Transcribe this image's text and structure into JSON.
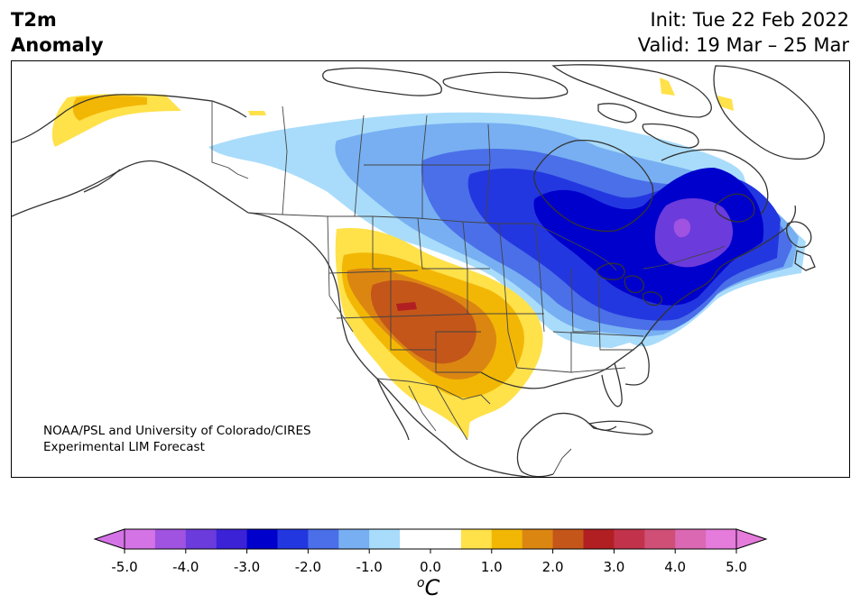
{
  "header": {
    "title_line1": "T2m",
    "title_line2": "Anomaly",
    "init_label": "Init: Tue 22 Feb 2022",
    "valid_label": "Valid: 19 Mar – 25 Mar"
  },
  "credit": {
    "line1": "NOAA/PSL and University of Colorado/CIRES",
    "line2": "Experimental LIM Forecast"
  },
  "colorbar": {
    "unit_main": "C",
    "unit_sup": "o",
    "labels": [
      "-5.0",
      "-4.0",
      "-3.0",
      "-2.0",
      "-1.0",
      "0.0",
      "1.0",
      "2.0",
      "3.0",
      "4.0",
      "5.0"
    ],
    "colors": [
      "#d473e6",
      "#a052e0",
      "#6b3bdc",
      "#3b22d6",
      "#0000cc",
      "#2337e0",
      "#4a6fe8",
      "#77aff2",
      "#a9dcfb",
      "#ffffff",
      "#ffffff",
      "#ffe14a",
      "#f2b705",
      "#dc8612",
      "#c4561a",
      "#b21f22",
      "#c2334b",
      "#cf4f76",
      "#db68b3",
      "#e57bdb"
    ],
    "extend_low_color": "#d473e6",
    "extend_high_color": "#e57bdb"
  },
  "map": {
    "colors": {
      "land_line": "#333333",
      "warm_1": "#ffe14a",
      "warm_2": "#f2b705",
      "warm_3": "#dc8612",
      "warm_4": "#c4561a",
      "warm_5": "#b21f22",
      "cold_1": "#a9dcfb",
      "cold_2": "#77aff2",
      "cold_3": "#4a6fe8",
      "cold_4": "#2337e0",
      "cold_5": "#0000cc",
      "cold_6": "#3b22d6",
      "cold_7": "#6b3bdc",
      "cold_8": "#a052e0"
    }
  }
}
